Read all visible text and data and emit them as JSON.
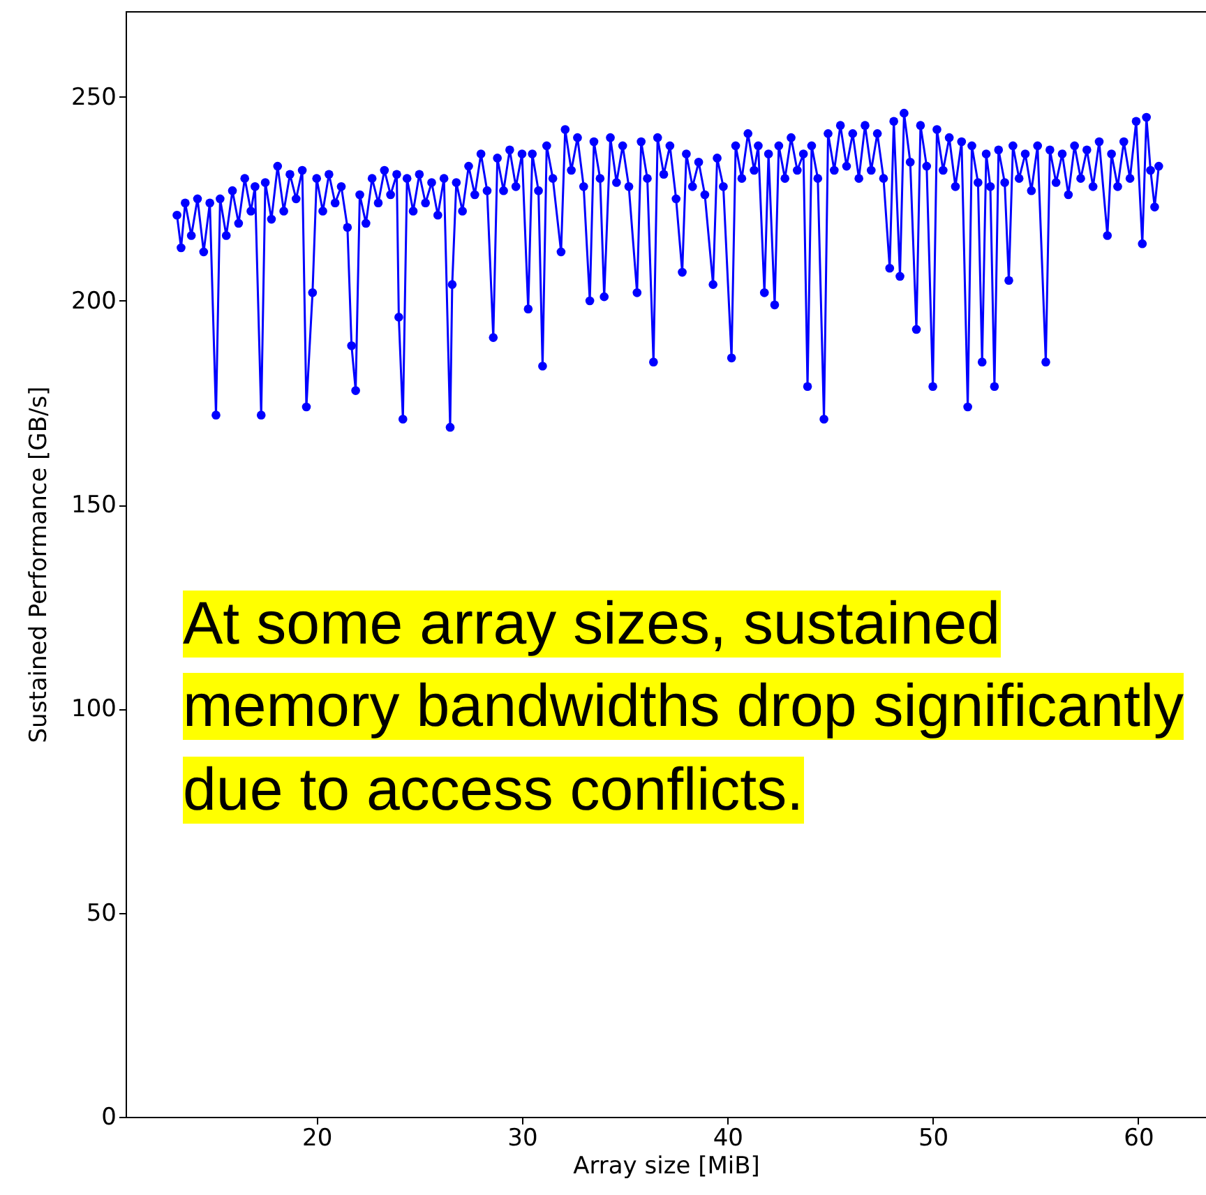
{
  "chart_data": {
    "type": "line",
    "xlabel": "Array size [MiB]",
    "ylabel": "Sustained Performance [GB/s]",
    "xlim": [
      10.7,
      63.3
    ],
    "ylim": [
      0,
      271
    ],
    "xticks": [
      20,
      30,
      40,
      50,
      60
    ],
    "yticks": [
      0,
      50,
      100,
      150,
      200,
      250
    ],
    "grid": false,
    "marker": "circle",
    "line_style": "solid",
    "annotations": [
      "At some array sizes, sustained memory bandwidths drop significantly due to access conflicts."
    ],
    "x": [
      13.2,
      13.4,
      13.6,
      13.9,
      14.2,
      14.5,
      14.8,
      15.1,
      15.3,
      15.6,
      15.9,
      16.2,
      16.5,
      16.8,
      17.0,
      17.3,
      17.5,
      17.8,
      18.1,
      18.4,
      18.7,
      19.0,
      19.3,
      19.5,
      19.8,
      20.0,
      20.3,
      20.6,
      20.9,
      21.2,
      21.5,
      21.7,
      21.9,
      22.1,
      22.4,
      22.7,
      23.0,
      23.3,
      23.6,
      23.9,
      24.0,
      24.2,
      24.4,
      24.7,
      25.0,
      25.3,
      25.6,
      25.9,
      26.2,
      26.5,
      26.6,
      26.8,
      27.1,
      27.4,
      27.7,
      28.0,
      28.3,
      28.6,
      28.8,
      29.1,
      29.4,
      29.7,
      30.0,
      30.3,
      30.5,
      30.8,
      31.0,
      31.2,
      31.5,
      31.9,
      32.1,
      32.4,
      32.7,
      33.0,
      33.3,
      33.5,
      33.8,
      34.0,
      34.3,
      34.6,
      34.9,
      35.2,
      35.6,
      35.8,
      36.1,
      36.4,
      36.6,
      36.9,
      37.2,
      37.5,
      37.8,
      38.0,
      38.3,
      38.6,
      38.9,
      39.3,
      39.5,
      39.8,
      40.2,
      40.4,
      40.7,
      41.0,
      41.3,
      41.5,
      41.8,
      42.0,
      42.3,
      42.5,
      42.8,
      43.1,
      43.4,
      43.7,
      43.9,
      44.1,
      44.4,
      44.7,
      44.9,
      45.2,
      45.5,
      45.8,
      46.1,
      46.4,
      46.7,
      47.0,
      47.3,
      47.6,
      47.9,
      48.1,
      48.4,
      48.6,
      48.9,
      49.2,
      49.4,
      49.7,
      50.0,
      50.2,
      50.5,
      50.8,
      51.1,
      51.4,
      51.7,
      51.9,
      52.2,
      52.4,
      52.6,
      52.8,
      53.0,
      53.2,
      53.5,
      53.7,
      53.9,
      54.2,
      54.5,
      54.8,
      55.1,
      55.5,
      55.7,
      56.0,
      56.3,
      56.6,
      56.9,
      57.2,
      57.5,
      57.8,
      58.1,
      58.5,
      58.7,
      59.0,
      59.3,
      59.6,
      59.9,
      60.2,
      60.4,
      60.6,
      60.8,
      61.0
    ],
    "series": [
      {
        "color": "#0000ff",
        "values": [
          221,
          213,
          224,
          216,
          225,
          212,
          224,
          172,
          225,
          216,
          227,
          219,
          230,
          222,
          228,
          172,
          229,
          220,
          233,
          222,
          231,
          225,
          232,
          174,
          202,
          230,
          222,
          231,
          224,
          228,
          218,
          189,
          178,
          226,
          219,
          230,
          224,
          232,
          226,
          231,
          196,
          171,
          230,
          222,
          231,
          224,
          229,
          221,
          230,
          169,
          204,
          229,
          222,
          233,
          226,
          236,
          227,
          191,
          235,
          227,
          237,
          228,
          236,
          198,
          236,
          227,
          184,
          238,
          230,
          212,
          242,
          232,
          240,
          228,
          200,
          239,
          230,
          201,
          240,
          229,
          238,
          228,
          202,
          239,
          230,
          185,
          240,
          231,
          238,
          225,
          207,
          236,
          228,
          234,
          226,
          204,
          235,
          228,
          186,
          238,
          230,
          241,
          232,
          238,
          202,
          236,
          199,
          238,
          230,
          240,
          232,
          236,
          179,
          238,
          230,
          171,
          241,
          232,
          243,
          233,
          241,
          230,
          243,
          232,
          241,
          230,
          208,
          244,
          206,
          246,
          234,
          193,
          243,
          233,
          179,
          242,
          232,
          240,
          228,
          239,
          174,
          238,
          229,
          185,
          236,
          228,
          179,
          237,
          229,
          205,
          238,
          230,
          236,
          227,
          238,
          185,
          237,
          229,
          236,
          226,
          238,
          230,
          237,
          228,
          239,
          216,
          236,
          228,
          239,
          230,
          244,
          214,
          245,
          232,
          223,
          233
        ]
      }
    ]
  }
}
